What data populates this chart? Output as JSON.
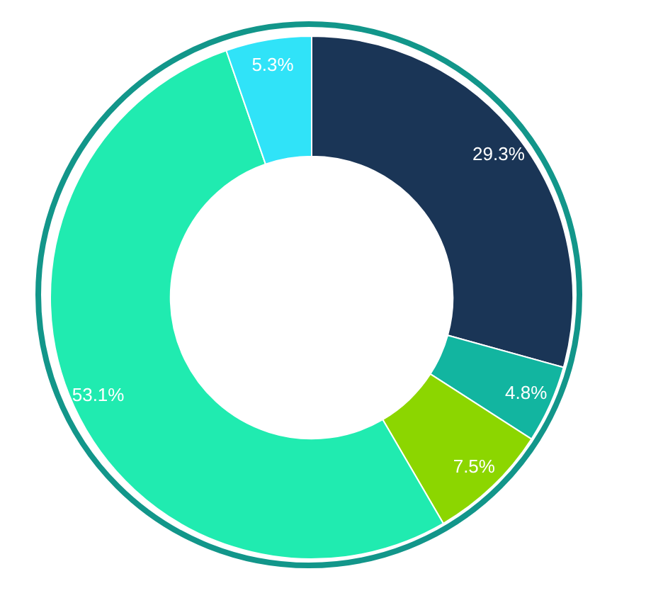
{
  "chart_data": {
    "type": "donut",
    "categories": [
      null,
      null,
      null,
      null,
      null
    ],
    "values": [
      29.3,
      4.8,
      7.5,
      53.1,
      5.3
    ],
    "colors": [
      "#1a3556",
      "#12b5a0",
      "#8cd600",
      "#20ebb0",
      "#30e3f8"
    ],
    "value_labels": [
      "29.3%",
      "4.8%",
      "7.5%",
      "53.1%",
      "5.3%"
    ],
    "legend": false
  }
}
